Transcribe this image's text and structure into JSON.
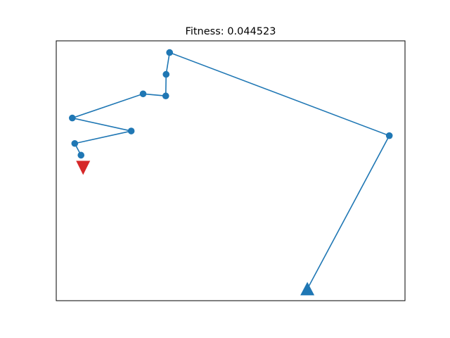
{
  "chart_data": {
    "type": "line",
    "title": "Fitness: 0.044523",
    "xlabel": "",
    "ylabel": "",
    "xlim": [
      0,
      100
    ],
    "ylim": [
      0,
      100
    ],
    "grid": false,
    "axes_ticks": false,
    "series": [
      {
        "color": "#1f77b4",
        "marker": "circle",
        "points": [
          [
            72,
            4.5
          ],
          [
            95.5,
            63.5
          ],
          [
            32.5,
            95.5
          ],
          [
            31.5,
            87.1
          ],
          [
            31.4,
            78.8
          ],
          [
            24.9,
            79.6
          ],
          [
            4.6,
            70.3
          ],
          [
            21.5,
            65.3
          ],
          [
            5.3,
            60.5
          ],
          [
            7.1,
            56.0
          ]
        ]
      }
    ],
    "markers": [
      {
        "type": "start",
        "shape": "triangle-up",
        "color": "#1f77b4",
        "x": 72,
        "y": 4.5
      },
      {
        "type": "end",
        "shape": "triangle-down",
        "color": "#d62728",
        "x": 7.1,
        "y": 56.0
      }
    ]
  }
}
